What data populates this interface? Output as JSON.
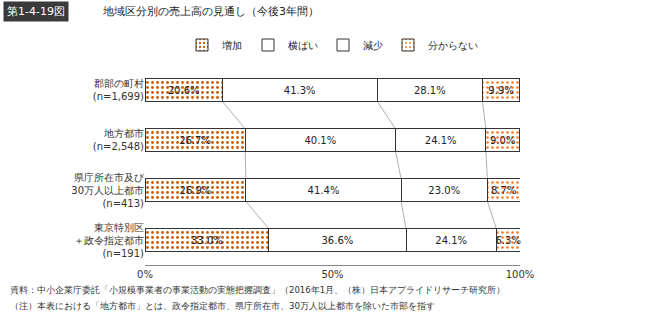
{
  "chart_data": {
    "type": "bar",
    "figure_label": "第1-4-19図",
    "title": "地域区分別の売上高の見通し（今後3年間）",
    "orientation": "horizontal",
    "stacked": true,
    "data_labels": true,
    "legend": "top",
    "grid": false,
    "categories": [
      "郡部の町村\n(n=1,699)",
      "地方都市\n(n=2,548)",
      "県庁所在市及び\n30万人以上都市\n(n=413)",
      "東京特別区\n＋政令指定都市\n(n=191)"
    ],
    "series": [
      {
        "name": "増加",
        "color": "#f47920",
        "values": [
          20.6,
          26.7,
          26.9,
          33.0
        ],
        "value_labels": [
          "20.6%",
          "26.7%",
          "26.9%",
          "33.0%"
        ]
      },
      {
        "name": "横ばい",
        "color": "#f6d25a",
        "values": [
          41.3,
          40.1,
          41.4,
          36.6
        ],
        "value_labels": [
          "41.3%",
          "40.1%",
          "41.4%",
          "36.6%"
        ]
      },
      {
        "name": "減少",
        "color": "#4fd04f",
        "values": [
          28.1,
          24.1,
          23.0,
          24.1
        ],
        "value_labels": [
          "28.1%",
          "24.1%",
          "23.0%",
          "24.1%"
        ]
      },
      {
        "name": "分からない",
        "color": "#ffffff",
        "values": [
          9.9,
          9.0,
          8.7,
          6.3
        ],
        "value_labels": [
          "9.9%",
          "9.0%",
          "8.7%",
          "6.3%"
        ]
      }
    ],
    "xlim": [
      0,
      100
    ],
    "xticks": [
      {
        "value": 0,
        "label": "0%"
      },
      {
        "value": 50,
        "label": "50%"
      },
      {
        "value": 100,
        "label": "100%"
      }
    ],
    "source": "資料：中小企業庁委託「小規模事業者の事業活動の実態把握調査」（2016年1月、（株）日本アプライドリサーチ研究所）",
    "note": "（注）本表における「地方都市」とは、政令指定都市、県庁所在市、30万人以上都市を除いた市部を指す"
  }
}
